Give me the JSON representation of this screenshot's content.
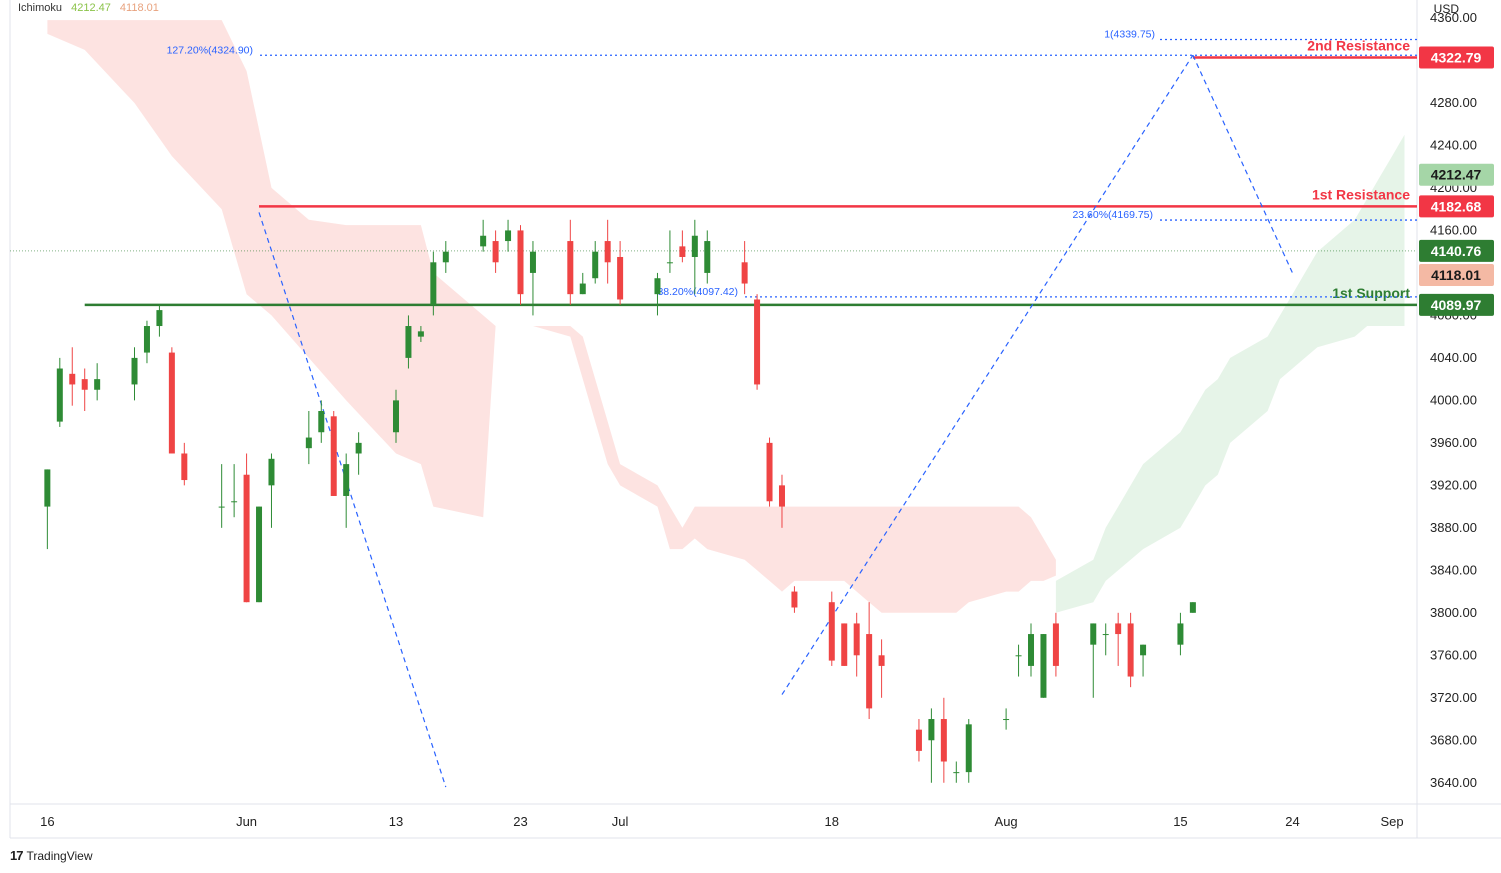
{
  "header": {
    "indicator": "Ichimoku",
    "value_a": "4212.47",
    "value_b": "4118.01",
    "currency": "USD"
  },
  "footer": {
    "brand": "TradingView"
  },
  "chart_data": {
    "type": "candlestick",
    "indicator": "Ichimoku Cloud",
    "y_range": [
      3620,
      4360
    ],
    "y_ticks": [
      3640,
      3680,
      3720,
      3760,
      3800,
      3840,
      3880,
      3920,
      3960,
      4000,
      4040,
      4080,
      4120,
      4160,
      4200,
      4240,
      4280,
      4320,
      4360
    ],
    "x_labels": [
      {
        "label": "16",
        "date": "2022-05-16"
      },
      {
        "label": "Jun",
        "date": "2022-06-01"
      },
      {
        "label": "13",
        "date": "2022-06-13"
      },
      {
        "label": "23",
        "date": "2022-06-23"
      },
      {
        "label": "Jul",
        "date": "2022-07-01"
      },
      {
        "label": "18",
        "date": "2022-07-18"
      },
      {
        "label": "Aug",
        "date": "2022-08-01"
      },
      {
        "label": "15",
        "date": "2022-08-15"
      },
      {
        "label": "24",
        "date": "2022-08-24"
      },
      {
        "label": "Sep",
        "date": "2022-09-01"
      }
    ],
    "price_labels": [
      {
        "text": "4322.79",
        "value": 4322.79,
        "color": "#f23645"
      },
      {
        "text": "4212.47",
        "value": 4212.47,
        "color": "#a5d6a7"
      },
      {
        "text": "4182.68",
        "value": 4182.68,
        "color": "#f23645"
      },
      {
        "text": "4140.76",
        "value": 4140.76,
        "color": "#2e7d32"
      },
      {
        "text": "4118.01",
        "value": 4118.01,
        "color": "#f4b9a4"
      },
      {
        "text": "4089.97",
        "value": 4089.97,
        "color": "#2e7d32"
      }
    ],
    "levels": [
      {
        "label": "2nd Resistance",
        "value": 4322.79,
        "color": "#f23645",
        "start_date": "2022-08-16"
      },
      {
        "label": "1st Resistance",
        "value": 4182.68,
        "color": "#f23645",
        "start_date": "2022-06-02"
      },
      {
        "label": "1st Support",
        "value": 4089.97,
        "color": "#2e7d32",
        "start_date": "2022-05-19"
      }
    ],
    "fib_levels": [
      {
        "label": "1(4339.75)",
        "value": 4339.75
      },
      {
        "label": "127.20%(4324.90)",
        "value": 4324.9
      },
      {
        "label": "23.60%(4169.75)",
        "value": 4169.75
      },
      {
        "label": "38.20%(4097.42)",
        "value": 4097.42
      }
    ],
    "trend_lines": [
      {
        "from": [
          "2022-06-02",
          4177
        ],
        "to": [
          "2022-06-17",
          3636
        ]
      },
      {
        "from": [
          "2022-07-14",
          3723
        ],
        "to": [
          "2022-08-16",
          4325
        ]
      },
      {
        "from": [
          "2022-08-16",
          4325
        ],
        "to": [
          "2022-08-24",
          4120
        ]
      }
    ],
    "cloud_red": [
      [
        "2022-05-16",
        4358,
        4345
      ],
      [
        "2022-05-19",
        4358,
        4330
      ],
      [
        "2022-05-23",
        4358,
        4280
      ],
      [
        "2022-05-26",
        4358,
        4230
      ],
      [
        "2022-05-30",
        4358,
        4180
      ],
      [
        "2022-06-01",
        4310,
        4100
      ],
      [
        "2022-06-03",
        4200,
        4080
      ],
      [
        "2022-06-06",
        4170,
        4040
      ],
      [
        "2022-06-09",
        4165,
        4000
      ],
      [
        "2022-06-13",
        4165,
        3950
      ],
      [
        "2022-06-15",
        4165,
        3940
      ],
      [
        "2022-06-16",
        4120,
        3900
      ],
      [
        "2022-06-20",
        4080,
        3890
      ],
      [
        "2022-06-21",
        4070,
        4070
      ],
      [
        "2022-06-24",
        4070,
        4070
      ],
      [
        "2022-06-27",
        4070,
        4060
      ],
      [
        "2022-06-28",
        4060,
        4020
      ],
      [
        "2022-06-29",
        4020,
        3980
      ],
      [
        "2022-06-30",
        3980,
        3940
      ],
      [
        "2022-07-01",
        3940,
        3920
      ],
      [
        "2022-07-04",
        3920,
        3900
      ],
      [
        "2022-07-05",
        3900,
        3860
      ],
      [
        "2022-07-06",
        3880,
        3860
      ],
      [
        "2022-07-07",
        3900,
        3870
      ],
      [
        "2022-07-08",
        3900,
        3860
      ],
      [
        "2022-07-11",
        3900,
        3850
      ],
      [
        "2022-07-12",
        3900,
        3840
      ],
      [
        "2022-07-13",
        3900,
        3830
      ],
      [
        "2022-07-14",
        3900,
        3820
      ],
      [
        "2022-07-15",
        3900,
        3830
      ],
      [
        "2022-07-18",
        3900,
        3830
      ],
      [
        "2022-07-19",
        3900,
        3830
      ],
      [
        "2022-07-20",
        3900,
        3820
      ],
      [
        "2022-07-21",
        3900,
        3810
      ],
      [
        "2022-07-22",
        3900,
        3800
      ],
      [
        "2022-07-25",
        3900,
        3800
      ],
      [
        "2022-07-26",
        3900,
        3800
      ],
      [
        "2022-07-27",
        3900,
        3800
      ],
      [
        "2022-07-28",
        3900,
        3800
      ],
      [
        "2022-07-29",
        3900,
        3810
      ],
      [
        "2022-08-01",
        3900,
        3820
      ],
      [
        "2022-08-02",
        3900,
        3820
      ],
      [
        "2022-08-03",
        3890,
        3830
      ],
      [
        "2022-08-04",
        3870,
        3830
      ],
      [
        "2022-08-05",
        3850,
        3835
      ]
    ],
    "cloud_green": [
      [
        "2022-08-05",
        3800,
        3830
      ],
      [
        "2022-08-08",
        3810,
        3850
      ],
      [
        "2022-08-09",
        3830,
        3880
      ],
      [
        "2022-08-10",
        3840,
        3900
      ],
      [
        "2022-08-11",
        3850,
        3920
      ],
      [
        "2022-08-12",
        3860,
        3940
      ],
      [
        "2022-08-15",
        3880,
        3970
      ],
      [
        "2022-08-16",
        3900,
        3990
      ],
      [
        "2022-08-17",
        3920,
        4010
      ],
      [
        "2022-08-18",
        3930,
        4020
      ],
      [
        "2022-08-19",
        3960,
        4040
      ],
      [
        "2022-08-22",
        3990,
        4060
      ],
      [
        "2022-08-23",
        4020,
        4080
      ],
      [
        "2022-08-24",
        4030,
        4100
      ],
      [
        "2022-08-25",
        4040,
        4120
      ],
      [
        "2022-08-26",
        4050,
        4140
      ],
      [
        "2022-08-29",
        4060,
        4170
      ],
      [
        "2022-08-30",
        4070,
        4190
      ],
      [
        "2022-08-31",
        4070,
        4210
      ],
      [
        "2022-09-01",
        4070,
        4230
      ],
      [
        "2022-09-02",
        4070,
        4250
      ]
    ],
    "candles": [
      [
        "2022-05-16",
        3900,
        3935,
        3860,
        3935
      ],
      [
        "2022-05-17",
        3980,
        4040,
        3975,
        4030
      ],
      [
        "2022-05-18",
        4025,
        4050,
        3995,
        4015
      ],
      [
        "2022-05-19",
        4020,
        4030,
        3990,
        4010
      ],
      [
        "2022-05-20",
        4010,
        4035,
        4000,
        4020
      ],
      [
        "2022-05-23",
        4015,
        4050,
        4000,
        4040
      ],
      [
        "2022-05-24",
        4045,
        4075,
        4035,
        4070
      ],
      [
        "2022-05-25",
        4070,
        4090,
        4060,
        4085
      ],
      [
        "2022-05-26",
        4045,
        4050,
        3950,
        3950
      ],
      [
        "2022-05-27",
        3950,
        3960,
        3920,
        3925
      ],
      [
        "2022-05-30",
        3900,
        3940,
        3880,
        3900
      ],
      [
        "2022-05-31",
        3905,
        3940,
        3890,
        3905
      ],
      [
        "2022-06-01",
        3930,
        3950,
        3810,
        3810
      ],
      [
        "2022-06-02",
        3810,
        3900,
        3810,
        3900
      ],
      [
        "2022-06-03",
        3920,
        3950,
        3880,
        3945
      ],
      [
        "2022-06-06",
        3955,
        3990,
        3940,
        3965
      ],
      [
        "2022-06-07",
        3970,
        4000,
        3960,
        3990
      ],
      [
        "2022-06-08",
        3985,
        3990,
        3910,
        3910
      ],
      [
        "2022-06-09",
        3910,
        3950,
        3880,
        3940
      ],
      [
        "2022-06-10",
        3950,
        3970,
        3930,
        3960
      ],
      [
        "2022-06-13",
        3970,
        4010,
        3960,
        4000
      ],
      [
        "2022-06-14",
        4040,
        4080,
        4030,
        4070
      ],
      [
        "2022-06-15",
        4060,
        4070,
        4055,
        4065
      ],
      [
        "2022-06-16",
        4090,
        4140,
        4080,
        4130
      ],
      [
        "2022-06-17",
        4130,
        4150,
        4120,
        4140
      ],
      [
        "2022-06-20",
        4145,
        4170,
        4140,
        4155
      ],
      [
        "2022-06-21",
        4150,
        4160,
        4120,
        4130
      ],
      [
        "2022-06-22",
        4150,
        4170,
        4140,
        4160
      ],
      [
        "2022-06-23",
        4160,
        4165,
        4090,
        4100
      ],
      [
        "2022-06-24",
        4120,
        4150,
        4080,
        4140
      ],
      [
        "2022-06-27",
        4150,
        4170,
        4090,
        4100
      ],
      [
        "2022-06-28",
        4100,
        4120,
        4100,
        4110
      ],
      [
        "2022-06-29",
        4115,
        4150,
        4110,
        4140
      ],
      [
        "2022-06-30",
        4150,
        4170,
        4110,
        4130
      ],
      [
        "2022-07-01",
        4135,
        4150,
        4090,
        4095
      ],
      [
        "2022-07-04",
        4100,
        4120,
        4080,
        4115
      ],
      [
        "2022-07-05",
        4130,
        4160,
        4120,
        4130
      ],
      [
        "2022-07-06",
        4145,
        4160,
        4130,
        4135
      ],
      [
        "2022-07-07",
        4135,
        4170,
        4100,
        4155
      ],
      [
        "2022-07-08",
        4120,
        4160,
        4110,
        4150
      ],
      [
        "2022-07-11",
        4130,
        4150,
        4100,
        4110
      ],
      [
        "2022-07-12",
        4095,
        4100,
        4010,
        4015
      ],
      [
        "2022-07-13",
        3960,
        3965,
        3900,
        3905
      ],
      [
        "2022-07-14",
        3920,
        3930,
        3880,
        3900
      ],
      [
        "2022-07-15",
        3820,
        3825,
        3800,
        3805
      ],
      [
        "2022-07-18",
        3810,
        3820,
        3750,
        3755
      ],
      [
        "2022-07-19",
        3790,
        3790,
        3750,
        3750
      ],
      [
        "2022-07-20",
        3790,
        3800,
        3740,
        3760
      ],
      [
        "2022-07-21",
        3780,
        3810,
        3700,
        3710
      ],
      [
        "2022-07-22",
        3760,
        3775,
        3720,
        3750
      ],
      [
        "2022-07-25",
        3690,
        3700,
        3660,
        3670
      ],
      [
        "2022-07-26",
        3680,
        3710,
        3640,
        3700
      ],
      [
        "2022-07-27",
        3700,
        3720,
        3640,
        3660
      ],
      [
        "2022-07-28",
        3650,
        3660,
        3640,
        3650
      ],
      [
        "2022-07-29",
        3650,
        3700,
        3640,
        3695
      ],
      [
        "2022-08-01",
        3700,
        3710,
        3690,
        3700
      ],
      [
        "2022-08-02",
        3760,
        3770,
        3740,
        3760
      ],
      [
        "2022-08-03",
        3750,
        3790,
        3740,
        3780
      ],
      [
        "2022-08-04",
        3720,
        3780,
        3720,
        3780
      ],
      [
        "2022-08-05",
        3790,
        3800,
        3740,
        3750
      ],
      [
        "2022-08-08",
        3770,
        3790,
        3720,
        3790
      ],
      [
        "2022-08-09",
        3780,
        3790,
        3760,
        3780
      ],
      [
        "2022-08-10",
        3790,
        3800,
        3750,
        3780
      ],
      [
        "2022-08-11",
        3790,
        3800,
        3730,
        3740
      ],
      [
        "2022-08-12",
        3760,
        3770,
        3740,
        3770
      ],
      [
        "2022-08-15",
        3770,
        3800,
        3760,
        3790
      ],
      [
        "2022-08-16",
        3800,
        3810,
        3800,
        3810
      ]
    ],
    "ichimoku_note": "",
    "current_price_line": 4140.76
  }
}
